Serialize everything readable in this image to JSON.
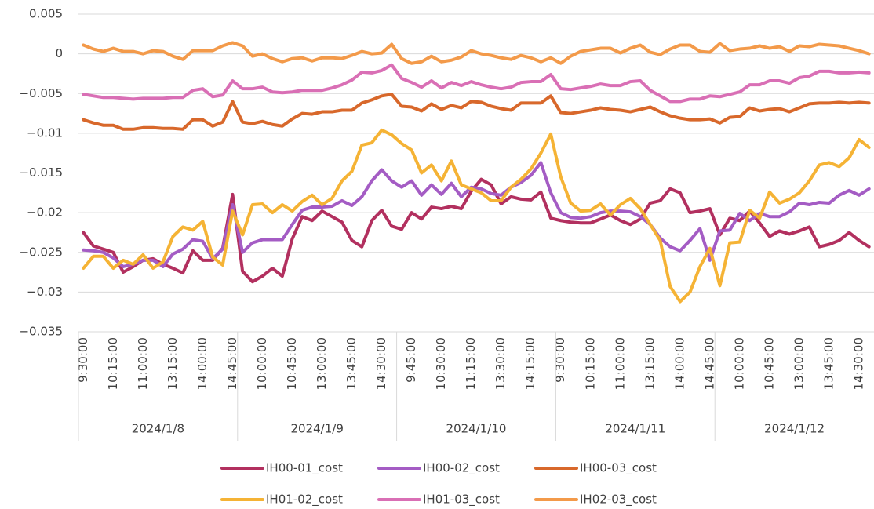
{
  "chart_data": {
    "type": "line",
    "categories": [
      "9:30:00",
      null,
      null,
      "10:15:00",
      null,
      null,
      "11:00:00",
      null,
      null,
      "13:15:00",
      null,
      null,
      "14:00:00",
      null,
      null,
      "14:45:00",
      null,
      null,
      "10:00:00",
      null,
      null,
      "10:45:00",
      null,
      null,
      "13:00:00",
      null,
      null,
      "13:45:00",
      null,
      null,
      "14:30:00",
      null,
      null,
      "9:45:00",
      null,
      null,
      "10:30:00",
      null,
      null,
      "11:15:00",
      null,
      null,
      "13:30:00",
      null,
      null,
      "14:15:00",
      null,
      null,
      "9:30:00",
      null,
      null,
      "10:15:00",
      null,
      null,
      "11:00:00",
      null,
      null,
      "13:15:00",
      null,
      null,
      "14:00:00",
      null,
      null,
      "14:45:00",
      null,
      null,
      "10:00:00",
      null,
      null,
      "10:45:00",
      null,
      null,
      "13:00:00",
      null,
      null,
      "13:45:00",
      null,
      null,
      "14:30:00",
      null
    ],
    "category_groups": [
      "2024/1/8",
      "2024/1/9",
      "2024/1/10",
      "2024/1/11",
      "2024/1/12"
    ],
    "series": [
      {
        "name": "IH00-01_cost",
        "color": "#b2305f",
        "values": [
          -0.0225,
          -0.0242,
          -0.0246,
          -0.025,
          -0.0275,
          -0.0268,
          -0.026,
          -0.0258,
          -0.0265,
          -0.027,
          -0.0276,
          -0.0248,
          -0.026,
          -0.026,
          -0.0245,
          -0.0177,
          -0.0274,
          -0.0287,
          -0.028,
          -0.027,
          -0.028,
          -0.0233,
          -0.0205,
          -0.021,
          -0.0198,
          -0.0205,
          -0.0212,
          -0.0235,
          -0.0243,
          -0.021,
          -0.0197,
          -0.0217,
          -0.0221,
          -0.02,
          -0.0208,
          -0.0193,
          -0.0195,
          -0.0192,
          -0.0195,
          -0.0173,
          -0.0158,
          -0.0165,
          -0.0189,
          -0.018,
          -0.0183,
          -0.0184,
          -0.0174,
          -0.0207,
          -0.021,
          -0.0212,
          -0.0213,
          -0.0213,
          -0.0208,
          -0.0203,
          -0.021,
          -0.0215,
          -0.0208,
          -0.0188,
          -0.0185,
          -0.017,
          -0.0175,
          -0.02,
          -0.0198,
          -0.0195,
          -0.0228,
          -0.0207,
          -0.021,
          -0.0198,
          -0.0213,
          -0.023,
          -0.0223,
          -0.0227,
          -0.0223,
          -0.0218,
          -0.0243,
          -0.024,
          -0.0235,
          -0.0225,
          -0.0235,
          -0.0243
        ]
      },
      {
        "name": "IH00-02_cost",
        "color": "#a45cc4",
        "values": [
          -0.0247,
          -0.0248,
          -0.025,
          -0.0257,
          -0.0268,
          -0.0265,
          -0.026,
          -0.026,
          -0.0268,
          -0.0252,
          -0.0246,
          -0.0234,
          -0.0236,
          -0.0258,
          -0.0246,
          -0.019,
          -0.025,
          -0.0238,
          -0.0234,
          -0.0234,
          -0.0234,
          -0.0215,
          -0.0197,
          -0.0193,
          -0.0193,
          -0.0192,
          -0.0185,
          -0.0191,
          -0.018,
          -0.016,
          -0.0146,
          -0.016,
          -0.0168,
          -0.016,
          -0.0178,
          -0.0165,
          -0.0177,
          -0.0163,
          -0.018,
          -0.0168,
          -0.017,
          -0.0176,
          -0.0178,
          -0.0168,
          -0.0162,
          -0.0153,
          -0.0137,
          -0.0175,
          -0.02,
          -0.0206,
          -0.0207,
          -0.0205,
          -0.02,
          -0.0198,
          -0.0198,
          -0.0199,
          -0.0205,
          -0.0215,
          -0.0232,
          -0.0243,
          -0.0248,
          -0.0235,
          -0.022,
          -0.026,
          -0.0223,
          -0.0222,
          -0.0201,
          -0.021,
          -0.0201,
          -0.0205,
          -0.0205,
          -0.0199,
          -0.0188,
          -0.019,
          -0.0187,
          -0.0188,
          -0.0178,
          -0.0172,
          -0.0178,
          -0.017
        ]
      },
      {
        "name": "IH00-03_cost",
        "color": "#d8682b",
        "values": [
          -0.0083,
          -0.0087,
          -0.009,
          -0.009,
          -0.0095,
          -0.0095,
          -0.0093,
          -0.0093,
          -0.0094,
          -0.0094,
          -0.0095,
          -0.0083,
          -0.0083,
          -0.0091,
          -0.0086,
          -0.006,
          -0.0086,
          -0.0088,
          -0.0085,
          -0.0089,
          -0.0091,
          -0.0082,
          -0.0075,
          -0.0076,
          -0.0073,
          -0.0073,
          -0.0071,
          -0.0071,
          -0.0062,
          -0.0058,
          -0.0053,
          -0.0051,
          -0.0066,
          -0.0067,
          -0.0072,
          -0.0063,
          -0.007,
          -0.0065,
          -0.0068,
          -0.006,
          -0.0061,
          -0.0066,
          -0.0069,
          -0.0071,
          -0.0062,
          -0.0062,
          -0.0062,
          -0.0053,
          -0.0074,
          -0.0075,
          -0.0073,
          -0.0071,
          -0.0068,
          -0.007,
          -0.0071,
          -0.0073,
          -0.007,
          -0.0067,
          -0.0073,
          -0.0078,
          -0.0081,
          -0.0083,
          -0.0083,
          -0.0082,
          -0.0087,
          -0.008,
          -0.0079,
          -0.0068,
          -0.0072,
          -0.007,
          -0.0069,
          -0.0073,
          -0.0068,
          -0.0063,
          -0.0062,
          -0.0062,
          -0.0061,
          -0.0062,
          -0.0061,
          -0.0062
        ]
      },
      {
        "name": "IH01-02_cost",
        "color": "#f5b335",
        "values": [
          -0.027,
          -0.0255,
          -0.0255,
          -0.027,
          -0.026,
          -0.0265,
          -0.0253,
          -0.027,
          -0.0262,
          -0.023,
          -0.0218,
          -0.0222,
          -0.0211,
          -0.0256,
          -0.0266,
          -0.0198,
          -0.0228,
          -0.019,
          -0.0189,
          -0.02,
          -0.019,
          -0.0198,
          -0.0186,
          -0.0178,
          -0.019,
          -0.0182,
          -0.016,
          -0.0148,
          -0.0115,
          -0.0112,
          -0.0096,
          -0.0102,
          -0.0113,
          -0.0121,
          -0.015,
          -0.014,
          -0.016,
          -0.0135,
          -0.0165,
          -0.017,
          -0.0175,
          -0.0185,
          -0.0185,
          -0.0168,
          -0.0158,
          -0.0145,
          -0.0125,
          -0.0101,
          -0.0155,
          -0.0188,
          -0.0198,
          -0.0197,
          -0.0189,
          -0.0203,
          -0.019,
          -0.0182,
          -0.0195,
          -0.0215,
          -0.0235,
          -0.0293,
          -0.0312,
          -0.03,
          -0.0268,
          -0.0245,
          -0.0292,
          -0.0238,
          -0.0237,
          -0.0197,
          -0.0207,
          -0.0174,
          -0.0188,
          -0.0183,
          -0.0175,
          -0.016,
          -0.014,
          -0.0137,
          -0.0142,
          -0.0131,
          -0.0108,
          -0.0118
        ]
      },
      {
        "name": "IH01-03_cost",
        "color": "#d96fb5",
        "values": [
          -0.0051,
          -0.0053,
          -0.0055,
          -0.0055,
          -0.0056,
          -0.0057,
          -0.0056,
          -0.0056,
          -0.0056,
          -0.0055,
          -0.0055,
          -0.0046,
          -0.0044,
          -0.0054,
          -0.0052,
          -0.0034,
          -0.0044,
          -0.0044,
          -0.0042,
          -0.0048,
          -0.0049,
          -0.0048,
          -0.0046,
          -0.0046,
          -0.0046,
          -0.0043,
          -0.0039,
          -0.0033,
          -0.0023,
          -0.0024,
          -0.0021,
          -0.0014,
          -0.0031,
          -0.0036,
          -0.0042,
          -0.0034,
          -0.0043,
          -0.0036,
          -0.004,
          -0.0035,
          -0.0039,
          -0.0042,
          -0.0044,
          -0.0042,
          -0.0036,
          -0.0035,
          -0.0035,
          -0.0026,
          -0.0044,
          -0.0045,
          -0.0043,
          -0.0041,
          -0.0038,
          -0.004,
          -0.004,
          -0.0035,
          -0.0034,
          -0.0046,
          -0.0053,
          -0.006,
          -0.006,
          -0.0057,
          -0.0057,
          -0.0053,
          -0.0054,
          -0.0051,
          -0.0048,
          -0.0039,
          -0.0039,
          -0.0034,
          -0.0034,
          -0.0037,
          -0.003,
          -0.0028,
          -0.0022,
          -0.0022,
          -0.0024,
          -0.0024,
          -0.0023,
          -0.0024
        ]
      },
      {
        "name": "IH02-03_cost",
        "color": "#f39a4a",
        "values": [
          0.0011,
          0.0006,
          0.0003,
          0.0007,
          0.0003,
          0.0003,
          0,
          0.0004,
          0.0003,
          -0.0003,
          -0.0007,
          0.0004,
          0.0004,
          0.0004,
          0.001,
          0.0014,
          0.001,
          -0.0003,
          0,
          -0.0006,
          -0.001,
          -0.0006,
          -0.0005,
          -0.0009,
          -0.0005,
          -0.0005,
          -0.0006,
          -0.0002,
          0.0003,
          0,
          0.0001,
          0.0012,
          -0.0006,
          -0.0012,
          -0.001,
          -0.0003,
          -0.001,
          -0.0008,
          -0.0004,
          0.0004,
          0,
          -0.0002,
          -0.0005,
          -0.0007,
          -0.0002,
          -0.0005,
          -0.001,
          -0.0005,
          -0.0012,
          -0.0003,
          0.0003,
          0.0005,
          0.0007,
          0.0007,
          0.0001,
          0.0007,
          0.0011,
          0.0002,
          -0.0001,
          0.0006,
          0.0011,
          0.0011,
          0.0003,
          0.0002,
          0.0013,
          0.0004,
          0.0006,
          0.0007,
          0.001,
          0.0007,
          0.0009,
          0.0003,
          0.001,
          0.0009,
          0.0012,
          0.0011,
          0.001,
          0.0007,
          0.0004,
          0
        ]
      }
    ],
    "ylim": [
      -0.035,
      0.005
    ],
    "yticks": [
      0.005,
      0,
      {
        "value": -0.005,
        "label": "−0.005"
      },
      {
        "value": -0.01,
        "label": "−0.01"
      },
      {
        "value": -0.015,
        "label": "−0.015"
      },
      {
        "value": -0.02,
        "label": "−0.02"
      },
      {
        "value": -0.025,
        "label": "−0.025"
      },
      {
        "value": -0.03,
        "label": "−0.03"
      },
      {
        "value": -0.035,
        "label": "−0.035"
      }
    ],
    "grid": true,
    "legend": "bottom"
  }
}
